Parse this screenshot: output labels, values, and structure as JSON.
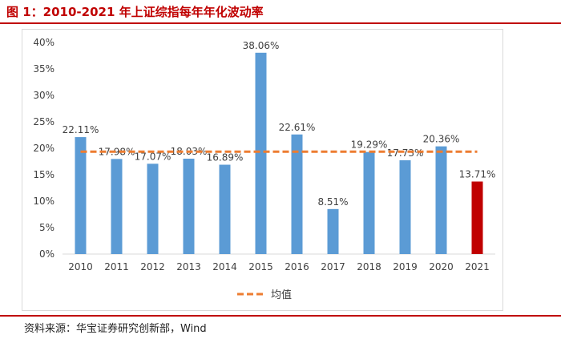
{
  "header": {
    "title": "图 1：2010-2021 年上证综指每年年化波动率"
  },
  "footer": {
    "source": "资料来源：华宝证券研究创新部，Wind"
  },
  "colors": {
    "accent": "#c00000",
    "bar": "#5b9bd5",
    "bar_highlight": "#c00000",
    "mean_line": "#ed7d31"
  },
  "chart_data": {
    "type": "bar",
    "title": "",
    "xlabel": "",
    "ylabel": "",
    "categories": [
      "2010",
      "2011",
      "2012",
      "2013",
      "2014",
      "2015",
      "2016",
      "2017",
      "2018",
      "2019",
      "2020",
      "2021"
    ],
    "values": [
      22.11,
      17.98,
      17.07,
      18.03,
      16.89,
      38.06,
      22.61,
      8.51,
      19.29,
      17.73,
      20.36,
      13.71
    ],
    "labels": [
      "22.11%",
      "17.98%",
      "17.07%",
      "18.03%",
      "16.89%",
      "38.06%",
      "22.61%",
      "8.51%",
      "19.29%",
      "17.73%",
      "20.36%",
      "13.71%"
    ],
    "highlight_index": 11,
    "mean": 19.36,
    "mean_label": "均值",
    "ylim": [
      0,
      40
    ],
    "yticks": [
      "0%",
      "5%",
      "10%",
      "15%",
      "20%",
      "25%",
      "30%",
      "35%",
      "40%"
    ],
    "grid": false,
    "legend": "bottom"
  }
}
